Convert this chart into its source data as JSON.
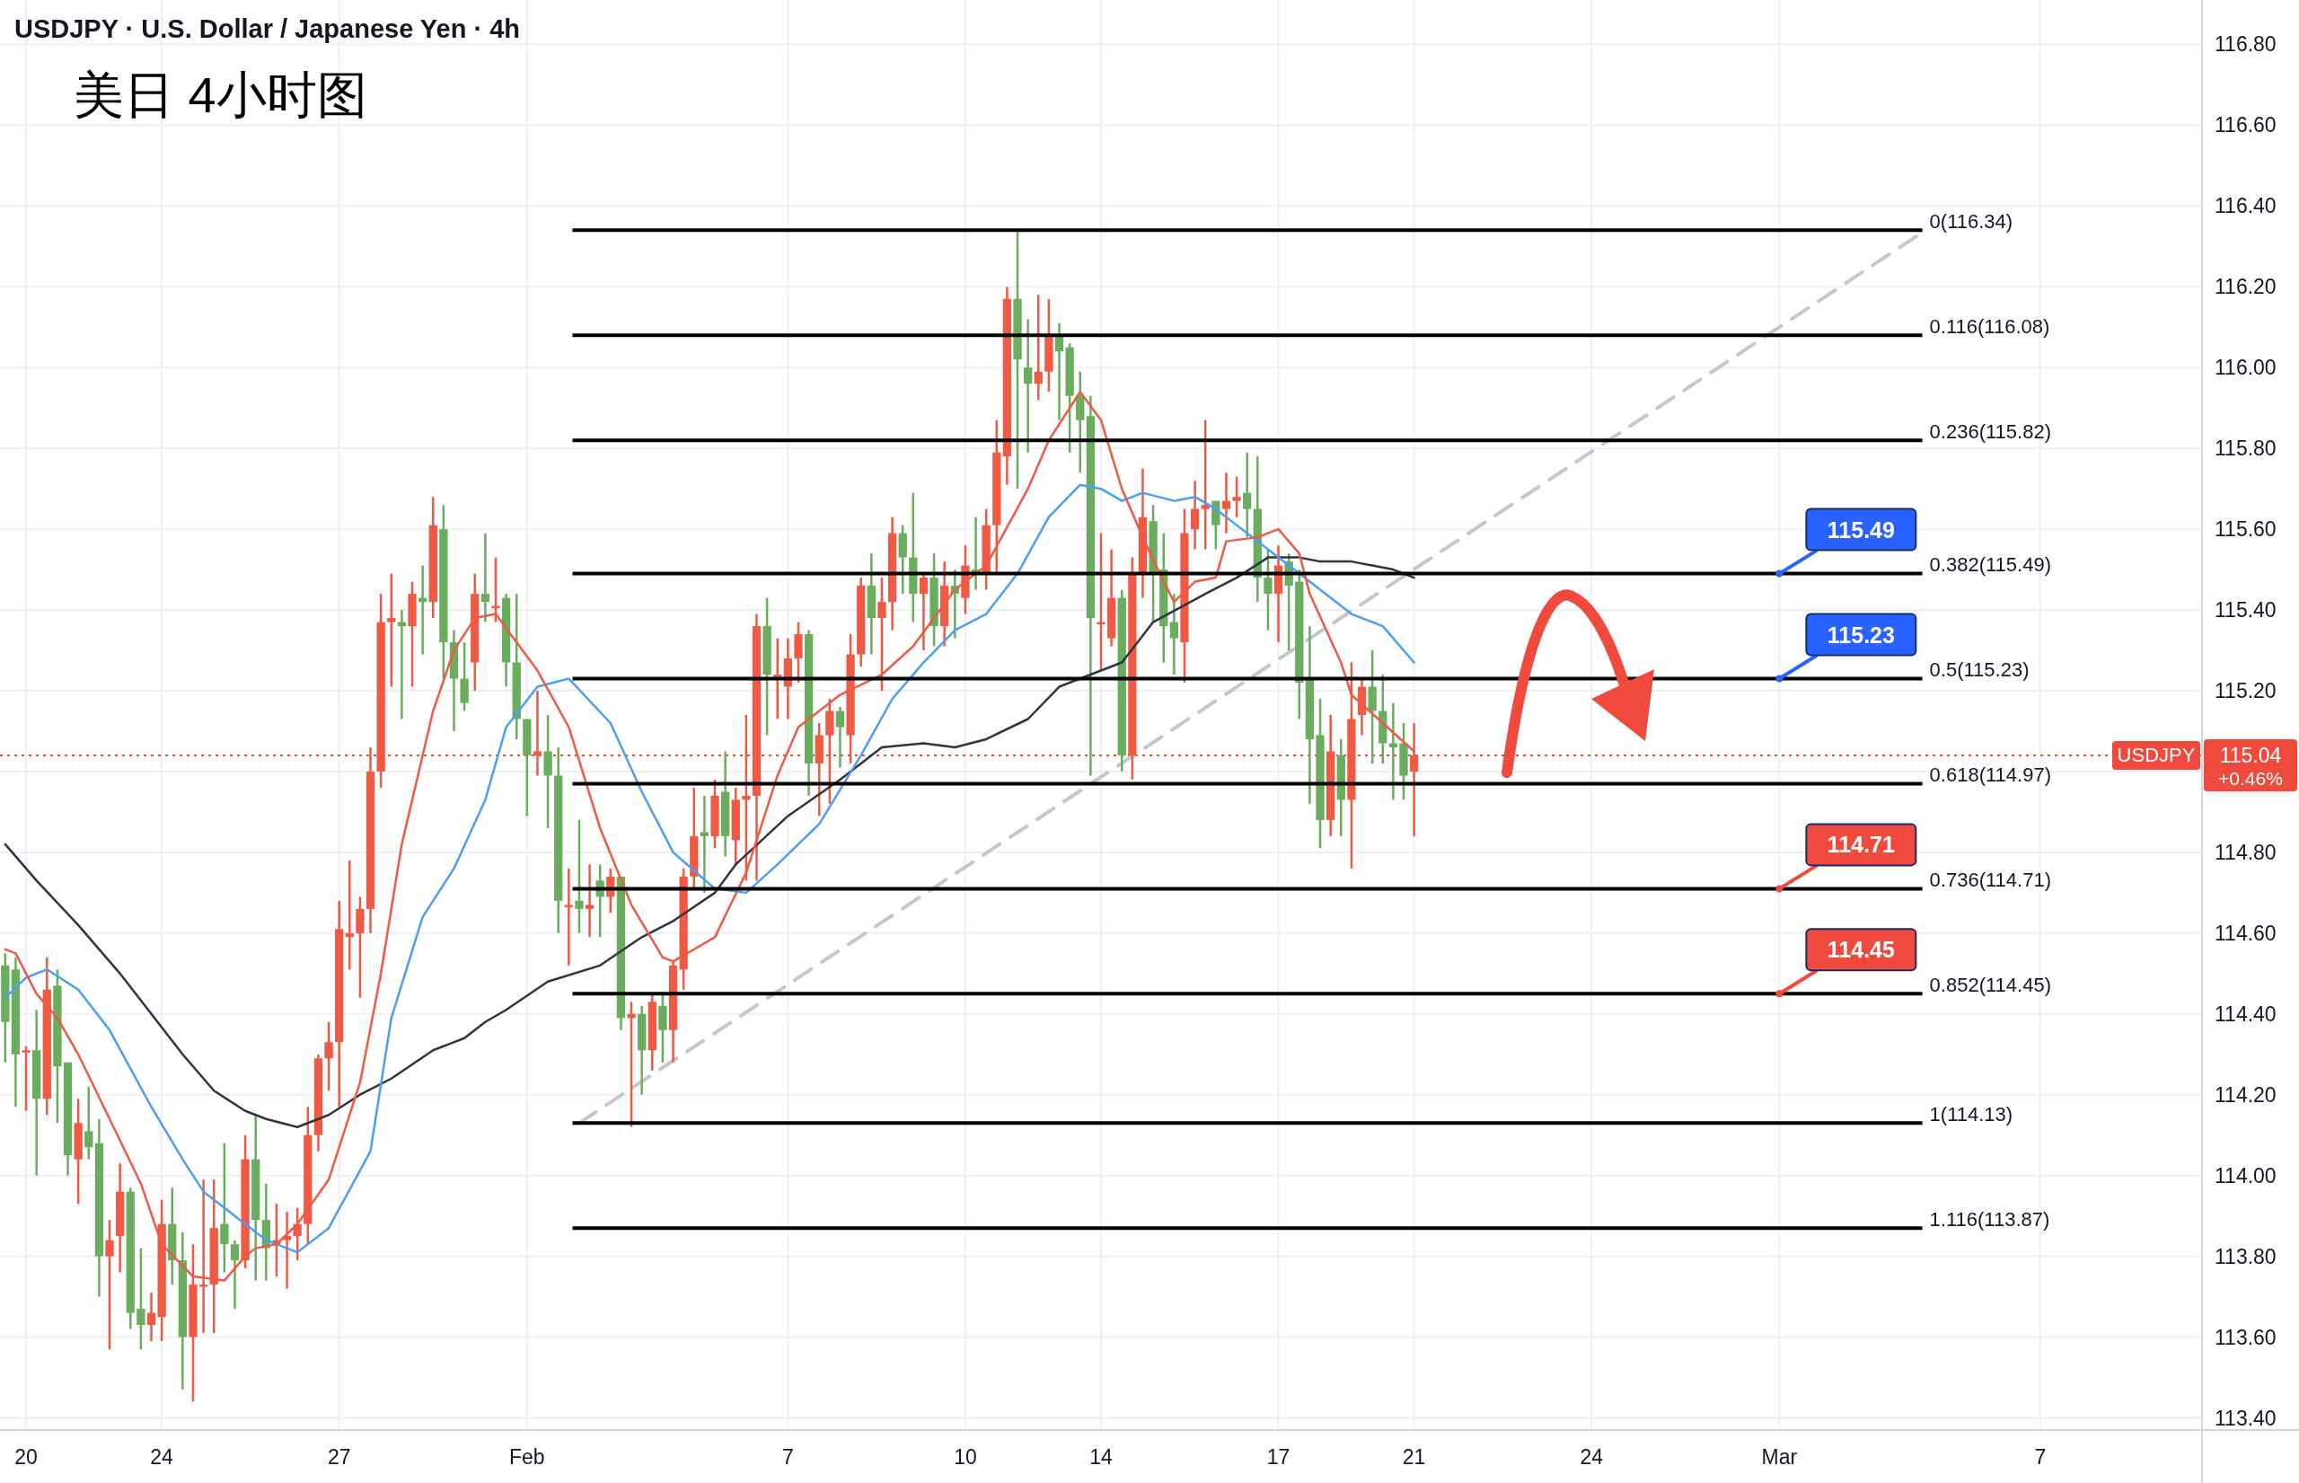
{
  "chart_data": {
    "type": "candlestick",
    "title": "USDJPY · U.S. Dollar / Japanese Yen · 4h",
    "subtitle": "美日 4小时图",
    "categories": [
      null,
      null,
      "20",
      null,
      null,
      null,
      null,
      null,
      null,
      null,
      null,
      null,
      null,
      null,
      null,
      "24",
      null,
      null,
      null,
      null,
      null,
      null,
      null,
      null,
      null,
      null,
      null,
      null,
      null,
      null,
      null,
      null,
      "27",
      null,
      null,
      null,
      null,
      null,
      null,
      null,
      null,
      null,
      null,
      null,
      null,
      null,
      null,
      null,
      null,
      null,
      "Feb",
      null,
      null,
      null,
      null,
      null,
      null,
      null,
      null,
      null,
      null,
      null,
      null,
      null,
      null,
      null,
      null,
      null,
      null,
      null,
      null,
      null,
      null,
      null,
      null,
      "7",
      null,
      null,
      null,
      null,
      null,
      null,
      null,
      null,
      null,
      null,
      null,
      null,
      null,
      null,
      null,
      null,
      "10",
      null,
      null,
      null,
      null,
      null,
      null,
      null,
      null,
      null,
      null,
      null,
      null,
      "14",
      null,
      null,
      null,
      null,
      null,
      null,
      null,
      null,
      null,
      null,
      null,
      null,
      null,
      null,
      null,
      null,
      "17",
      null,
      null,
      null,
      null,
      null,
      null,
      null,
      null,
      null,
      null,
      null,
      null,
      "21",
      null,
      null,
      null,
      null,
      null,
      null,
      null,
      null,
      null,
      null,
      null,
      null,
      null,
      null,
      null,
      null,
      "24",
      null,
      null,
      null,
      null,
      null,
      null,
      null,
      null,
      null,
      null,
      null,
      null,
      null,
      null,
      null,
      null,
      null,
      "Mar",
      null,
      null,
      null,
      null,
      null,
      null,
      null,
      null,
      null,
      null,
      null,
      null,
      null,
      null,
      null,
      null,
      null,
      null,
      null,
      null,
      null,
      null,
      null,
      null,
      "7",
      null,
      null,
      null,
      null,
      null,
      null,
      null,
      null,
      null,
      null,
      null,
      null,
      null,
      null,
      null
    ],
    "ohlc": [
      [
        114.52,
        114.55,
        114.28,
        114.38
      ],
      [
        114.51,
        114.54,
        114.17,
        114.3
      ],
      [
        114.31,
        114.32,
        114.16,
        114.31
      ],
      [
        114.31,
        114.41,
        114.0,
        114.19
      ],
      [
        114.19,
        114.54,
        114.15,
        114.46
      ],
      [
        114.47,
        114.51,
        114.13,
        114.27
      ],
      [
        114.28,
        114.28,
        114.0,
        114.05
      ],
      [
        114.04,
        114.19,
        113.93,
        114.13
      ],
      [
        114.11,
        114.22,
        114.04,
        114.07
      ],
      [
        114.08,
        114.14,
        113.7,
        113.8
      ],
      [
        113.8,
        113.89,
        113.57,
        113.84
      ],
      [
        113.85,
        114.03,
        113.76,
        113.96
      ],
      [
        113.96,
        113.97,
        113.62,
        113.66
      ],
      [
        113.67,
        113.82,
        113.57,
        113.63
      ],
      [
        113.63,
        113.71,
        113.59,
        113.66
      ],
      [
        113.65,
        113.94,
        113.59,
        113.88
      ],
      [
        113.88,
        113.97,
        113.73,
        113.79
      ],
      [
        113.79,
        113.86,
        113.47,
        113.6
      ],
      [
        113.6,
        113.83,
        113.44,
        113.73
      ],
      [
        113.73,
        113.99,
        113.61,
        113.73
      ],
      [
        113.73,
        113.99,
        113.61,
        113.87
      ],
      [
        113.88,
        114.08,
        113.76,
        113.83
      ],
      [
        113.83,
        113.84,
        113.67,
        113.79
      ],
      [
        113.79,
        114.1,
        113.77,
        114.04
      ],
      [
        114.04,
        114.15,
        113.74,
        113.89
      ],
      [
        113.89,
        113.98,
        113.74,
        113.82
      ],
      [
        113.83,
        113.93,
        113.75,
        113.84
      ],
      [
        113.84,
        113.91,
        113.72,
        113.85
      ],
      [
        113.85,
        113.92,
        113.79,
        113.88
      ],
      [
        113.88,
        114.17,
        113.83,
        114.1
      ],
      [
        114.1,
        114.3,
        114.06,
        114.29
      ],
      [
        114.29,
        114.38,
        114.21,
        114.33
      ],
      [
        114.33,
        114.68,
        114.17,
        114.61
      ],
      [
        114.59,
        114.78,
        114.51,
        114.6
      ],
      [
        114.6,
        114.69,
        114.44,
        114.66
      ],
      [
        114.66,
        115.06,
        114.6,
        115.0
      ],
      [
        115.0,
        115.44,
        114.96,
        115.37
      ],
      [
        115.37,
        115.49,
        115.21,
        115.38
      ],
      [
        115.37,
        115.4,
        115.13,
        115.36
      ],
      [
        115.36,
        115.47,
        115.21,
        115.44
      ],
      [
        115.43,
        115.51,
        115.29,
        115.42
      ],
      [
        115.42,
        115.68,
        115.38,
        115.61
      ],
      [
        115.6,
        115.66,
        115.23,
        115.32
      ],
      [
        115.32,
        115.35,
        115.1,
        115.23
      ],
      [
        115.23,
        115.32,
        115.15,
        115.17
      ],
      [
        115.27,
        115.49,
        115.2,
        115.44
      ],
      [
        115.44,
        115.59,
        115.37,
        115.42
      ],
      [
        115.41,
        115.53,
        115.37,
        115.41
      ],
      [
        115.43,
        115.44,
        115.21,
        115.27
      ],
      [
        115.27,
        115.44,
        115.08,
        115.13
      ],
      [
        115.13,
        115.13,
        114.89,
        115.04
      ],
      [
        115.04,
        115.2,
        114.99,
        115.05
      ],
      [
        115.05,
        115.14,
        114.86,
        114.99
      ],
      [
        114.99,
        115.06,
        114.6,
        114.68
      ],
      [
        114.67,
        114.76,
        114.52,
        114.67
      ],
      [
        114.68,
        114.88,
        114.6,
        114.66
      ],
      [
        114.66,
        114.77,
        114.59,
        114.67
      ],
      [
        114.73,
        114.77,
        114.59,
        114.69
      ],
      [
        114.69,
        114.76,
        114.65,
        114.74
      ],
      [
        114.74,
        114.74,
        114.36,
        114.39
      ],
      [
        114.39,
        114.43,
        114.12,
        114.4
      ],
      [
        114.4,
        114.42,
        114.2,
        114.31
      ],
      [
        114.31,
        114.45,
        114.26,
        114.43
      ],
      [
        114.42,
        114.45,
        114.28,
        114.36
      ],
      [
        114.36,
        114.53,
        114.28,
        114.52
      ],
      [
        114.51,
        114.76,
        114.46,
        114.74
      ],
      [
        114.74,
        114.96,
        114.71,
        114.84
      ],
      [
        114.85,
        114.94,
        114.7,
        114.84
      ],
      [
        114.84,
        114.98,
        114.81,
        114.94
      ],
      [
        114.95,
        115.05,
        114.79,
        114.84
      ],
      [
        114.83,
        114.96,
        114.77,
        114.93
      ],
      [
        114.93,
        115.14,
        114.73,
        114.94
      ],
      [
        114.94,
        115.39,
        114.73,
        115.36
      ],
      [
        115.36,
        115.43,
        115.09,
        115.24
      ],
      [
        115.24,
        115.33,
        115.13,
        115.24
      ],
      [
        115.21,
        115.33,
        115.13,
        115.28
      ],
      [
        115.28,
        115.37,
        115.22,
        115.34
      ],
      [
        115.34,
        115.35,
        114.94,
        115.02
      ],
      [
        115.02,
        115.12,
        114.89,
        115.09
      ],
      [
        115.09,
        115.18,
        114.92,
        115.15
      ],
      [
        115.15,
        115.16,
        115.01,
        115.11
      ],
      [
        115.09,
        115.34,
        115.02,
        115.29
      ],
      [
        115.29,
        115.48,
        115.26,
        115.46
      ],
      [
        115.46,
        115.54,
        115.29,
        115.38
      ],
      [
        115.38,
        115.48,
        115.2,
        115.42
      ],
      [
        115.42,
        115.63,
        115.35,
        115.59
      ],
      [
        115.59,
        115.61,
        115.44,
        115.53
      ],
      [
        115.53,
        115.69,
        115.37,
        115.44
      ],
      [
        115.44,
        115.49,
        115.3,
        115.48
      ],
      [
        115.48,
        115.54,
        115.31,
        115.36
      ],
      [
        115.36,
        115.52,
        115.31,
        115.46
      ],
      [
        115.46,
        115.5,
        115.33,
        115.44
      ],
      [
        115.43,
        115.56,
        115.39,
        115.51
      ],
      [
        115.5,
        115.63,
        115.45,
        115.49
      ],
      [
        115.49,
        115.65,
        115.45,
        115.61
      ],
      [
        115.61,
        115.87,
        115.49,
        115.79
      ],
      [
        115.78,
        116.2,
        115.71,
        116.17
      ],
      [
        116.17,
        116.34,
        115.7,
        116.02
      ],
      [
        116.0,
        116.12,
        115.79,
        115.96
      ],
      [
        115.96,
        116.18,
        115.92,
        115.99
      ],
      [
        115.99,
        116.17,
        115.94,
        116.08
      ],
      [
        116.08,
        116.11,
        115.87,
        116.04
      ],
      [
        116.05,
        116.06,
        115.79,
        115.93
      ],
      [
        115.93,
        115.99,
        115.74,
        115.87
      ],
      [
        115.88,
        115.93,
        114.99,
        115.38
      ],
      [
        115.37,
        115.59,
        115.25,
        115.37
      ],
      [
        115.33,
        115.55,
        115.31,
        115.43
      ],
      [
        115.43,
        115.45,
        115.0,
        115.04
      ],
      [
        115.04,
        115.53,
        114.98,
        115.49
      ],
      [
        115.49,
        115.75,
        115.43,
        115.63
      ],
      [
        115.62,
        115.66,
        115.37,
        115.49
      ],
      [
        115.5,
        115.59,
        115.27,
        115.36
      ],
      [
        115.37,
        115.44,
        115.24,
        115.33
      ],
      [
        115.32,
        115.65,
        115.22,
        115.59
      ],
      [
        115.6,
        115.72,
        115.55,
        115.65
      ],
      [
        115.65,
        115.87,
        115.55,
        115.66
      ],
      [
        115.67,
        115.67,
        115.55,
        115.61
      ],
      [
        115.65,
        115.74,
        115.59,
        115.67
      ],
      [
        115.67,
        115.73,
        115.63,
        115.68
      ],
      [
        115.69,
        115.79,
        115.58,
        115.65
      ],
      [
        115.65,
        115.78,
        115.42,
        115.48
      ],
      [
        115.48,
        115.55,
        115.35,
        115.44
      ],
      [
        115.44,
        115.56,
        115.32,
        115.51
      ],
      [
        115.52,
        115.54,
        115.3,
        115.46
      ],
      [
        115.47,
        115.5,
        115.13,
        115.22
      ],
      [
        115.23,
        115.36,
        114.92,
        115.08
      ],
      [
        115.09,
        115.18,
        114.81,
        114.88
      ],
      [
        114.88,
        115.14,
        114.84,
        115.05
      ],
      [
        115.04,
        115.08,
        114.84,
        114.93
      ],
      [
        114.93,
        115.27,
        114.76,
        115.13
      ],
      [
        115.14,
        115.23,
        115.09,
        115.21
      ],
      [
        115.21,
        115.3,
        115.02,
        115.15
      ],
      [
        115.15,
        115.24,
        115.02,
        115.07
      ],
      [
        115.07,
        115.17,
        114.93,
        115.06
      ],
      [
        115.07,
        115.12,
        114.93,
        114.99
      ],
      [
        115.0,
        115.12,
        114.84,
        115.04
      ],
      null,
      null,
      null,
      null,
      null,
      null,
      null,
      null,
      null,
      null,
      null,
      null,
      null,
      null,
      null,
      null,
      null,
      null,
      null,
      null,
      null,
      null,
      null,
      null,
      null,
      null,
      null,
      null,
      null,
      null,
      null,
      null,
      null,
      null,
      null,
      null,
      null,
      null,
      null,
      null,
      null,
      null,
      null,
      null,
      null,
      null,
      null,
      null,
      null,
      null,
      null,
      null,
      null,
      null,
      null,
      null,
      null,
      null,
      null,
      null,
      null,
      null,
      null,
      null,
      null,
      null,
      null,
      null,
      null,
      null,
      null,
      null,
      null,
      null,
      null
    ],
    "series": [
      {
        "type": "line",
        "color": "#333340",
        "values": [
          114.82,
          null,
          null,
          114.73,
          null,
          null,
          null,
          114.62,
          null,
          null,
          null,
          114.5,
          null,
          null,
          114.4,
          null,
          null,
          114.3,
          null,
          null,
          114.21,
          null,
          null,
          114.16,
          null,
          114.14,
          null,
          null,
          114.12,
          null,
          null,
          114.15,
          null,
          null,
          114.2,
          null,
          null,
          114.24,
          null,
          null,
          null,
          114.31,
          null,
          null,
          114.34,
          null,
          114.38,
          null,
          114.41,
          null,
          null,
          null,
          114.48,
          null,
          null,
          null,
          null,
          114.52,
          null,
          null,
          null,
          114.59,
          null,
          null,
          114.63,
          null,
          null,
          null,
          114.7,
          null,
          114.77,
          null,
          null,
          null,
          null,
          114.89,
          null,
          null,
          null,
          null,
          114.98,
          null,
          null,
          null,
          115.06,
          null,
          null,
          null,
          115.07,
          null,
          null,
          115.06,
          null,
          null,
          115.08,
          null,
          null,
          null,
          115.13,
          null,
          null,
          115.21,
          null,
          null,
          115.24,
          null,
          null,
          115.27,
          null,
          null,
          115.37,
          null,
          null,
          null,
          null,
          115.44,
          null,
          null,
          115.48,
          null,
          null,
          115.53,
          null,
          null,
          115.53,
          null,
          115.52,
          null,
          null,
          115.52,
          null,
          115.51,
          null,
          115.5,
          null,
          115.48,
          null,
          null,
          null,
          null,
          null,
          null,
          null,
          null,
          null,
          null,
          null,
          null,
          null,
          null,
          null,
          null,
          null,
          null,
          null,
          null,
          null,
          null,
          null,
          null,
          null,
          null,
          null,
          null,
          null,
          null,
          null,
          null,
          null,
          null,
          null,
          null,
          null,
          null,
          null,
          null,
          null,
          null,
          null,
          null,
          null,
          null,
          null,
          null,
          null,
          null,
          null,
          null,
          null,
          null,
          null,
          null,
          null,
          null,
          null,
          null,
          null,
          null,
          null,
          null,
          null,
          null,
          null,
          null,
          null,
          null,
          null,
          null,
          null,
          null,
          null
        ]
      },
      {
        "type": "line",
        "color": "#4a9ff5",
        "values": [
          114.44,
          null,
          114.49,
          null,
          114.51,
          null,
          null,
          114.46,
          null,
          null,
          114.36,
          null,
          null,
          null,
          114.17,
          null,
          null,
          114.04,
          null,
          113.96,
          null,
          null,
          113.9,
          null,
          null,
          113.84,
          null,
          null,
          113.81,
          null,
          null,
          113.87,
          null,
          null,
          null,
          114.06,
          null,
          114.39,
          null,
          null,
          114.64,
          null,
          null,
          114.76,
          null,
          null,
          114.93,
          null,
          115.11,
          null,
          null,
          115.21,
          null,
          null,
          115.23,
          null,
          null,
          null,
          115.12,
          null,
          null,
          114.95,
          null,
          null,
          114.8,
          null,
          null,
          null,
          114.71,
          null,
          null,
          114.7,
          null,
          null,
          114.77,
          null,
          null,
          null,
          114.87,
          null,
          null,
          null,
          115.04,
          null,
          null,
          115.18,
          null,
          null,
          115.27,
          null,
          null,
          115.35,
          null,
          null,
          115.39,
          null,
          null,
          115.49,
          null,
          null,
          115.63,
          null,
          null,
          115.71,
          null,
          115.7,
          null,
          115.67,
          null,
          115.69,
          null,
          null,
          115.67,
          null,
          115.68,
          null,
          115.65,
          null,
          null,
          115.59,
          null,
          null,
          null,
          115.51,
          null,
          null,
          115.45,
          null,
          null,
          115.39,
          null,
          null,
          115.36,
          null,
          null,
          115.27,
          null,
          null,
          null,
          null,
          null,
          null,
          null,
          null,
          null,
          null,
          null,
          null,
          null,
          null,
          null,
          null,
          null,
          null,
          null,
          null,
          null,
          null,
          null,
          null,
          null,
          null,
          null,
          null,
          null,
          null,
          null,
          null,
          null,
          null,
          null,
          null,
          null,
          null,
          null,
          null,
          null,
          null,
          null,
          null,
          null,
          null,
          null,
          null,
          null,
          null,
          null,
          null,
          null,
          null,
          null,
          null,
          null,
          null,
          null,
          null,
          null,
          null,
          null,
          null,
          null,
          null,
          null,
          null,
          null,
          null,
          null,
          null,
          null,
          null,
          null
        ]
      },
      {
        "type": "line",
        "color": "#ef5a45",
        "values": [
          114.56,
          114.55,
          null,
          114.45,
          null,
          114.39,
          null,
          114.3,
          null,
          null,
          114.14,
          null,
          null,
          113.98,
          null,
          113.83,
          null,
          null,
          113.75,
          null,
          null,
          113.74,
          null,
          113.8,
          113.82,
          null,
          113.83,
          null,
          113.88,
          null,
          null,
          113.99,
          null,
          null,
          114.23,
          null,
          114.5,
          null,
          114.82,
          null,
          null,
          115.15,
          null,
          115.3,
          null,
          115.38,
          null,
          115.39,
          null,
          null,
          null,
          115.25,
          null,
          null,
          115.11,
          null,
          null,
          114.86,
          null,
          null,
          114.67,
          null,
          null,
          114.54,
          114.53,
          null,
          null,
          null,
          114.59,
          null,
          null,
          114.75,
          null,
          null,
          114.99,
          null,
          115.11,
          null,
          null,
          null,
          115.19,
          null,
          null,
          null,
          115.24,
          null,
          null,
          115.31,
          null,
          null,
          null,
          115.45,
          null,
          null,
          115.51,
          null,
          null,
          null,
          115.7,
          null,
          115.82,
          null,
          null,
          115.94,
          null,
          115.87,
          null,
          115.7,
          null,
          115.58,
          null,
          115.47,
          115.42,
          null,
          115.47,
          null,
          115.48,
          115.57,
          null,
          null,
          115.58,
          null,
          115.6,
          null,
          115.54,
          115.44,
          null,
          null,
          115.27,
          115.19,
          null,
          null,
          115.12,
          null,
          null,
          115.05,
          null,
          null,
          null,
          null,
          null,
          null,
          null,
          null,
          null,
          null,
          null,
          null,
          null,
          null,
          null,
          null,
          null,
          null,
          null,
          null,
          null,
          null,
          null,
          null,
          null,
          null,
          null,
          null,
          null,
          null,
          null,
          null,
          null,
          null,
          null,
          null,
          null,
          null,
          null,
          null,
          null,
          null,
          null,
          null,
          null,
          null,
          null,
          null,
          null,
          null,
          null,
          null,
          null,
          null,
          null,
          null,
          null,
          null,
          null,
          null,
          null,
          null,
          null,
          null,
          null,
          null,
          null,
          null,
          null,
          null,
          null,
          null,
          null,
          null,
          null
        ]
      },
      {
        "type": "line",
        "color": "#c5c7cf",
        "line_style": "dashed",
        "values": [
          null,
          null,
          null,
          null,
          null,
          null,
          null,
          null,
          null,
          null,
          null,
          null,
          null,
          null,
          null,
          null,
          null,
          null,
          null,
          null,
          null,
          null,
          null,
          null,
          null,
          null,
          null,
          null,
          null,
          null,
          null,
          null,
          null,
          null,
          null,
          null,
          null,
          null,
          null,
          null,
          null,
          null,
          null,
          null,
          null,
          null,
          null,
          null,
          null,
          null,
          null,
          null,
          null,
          null,
          null,
          114.13,
          null,
          null,
          null,
          null,
          null,
          null,
          null,
          null,
          null,
          null,
          null,
          null,
          null,
          null,
          null,
          null,
          null,
          null,
          null,
          null,
          null,
          null,
          null,
          null,
          null,
          null,
          null,
          null,
          null,
          null,
          null,
          null,
          null,
          null,
          null,
          null,
          null,
          null,
          null,
          null,
          null,
          null,
          null,
          null,
          null,
          null,
          null,
          null,
          null,
          null,
          null,
          null,
          null,
          null,
          null,
          null,
          null,
          null,
          null,
          null,
          null,
          null,
          null,
          null,
          null,
          null,
          null,
          null,
          null,
          null,
          null,
          null,
          null,
          null,
          null,
          null,
          null,
          null,
          null,
          null,
          null,
          null,
          null,
          null,
          null,
          null,
          null,
          null,
          null,
          null,
          null,
          null,
          null,
          null,
          null,
          null,
          null,
          null,
          null,
          null,
          null,
          null,
          null,
          null,
          null,
          null,
          null,
          null,
          null,
          null,
          null,
          null,
          null,
          null,
          null,
          null,
          null,
          null,
          null,
          null,
          null,
          null,
          null,
          null,
          null,
          null,
          null,
          null,
          116.34,
          null,
          null,
          null,
          null,
          null,
          null,
          null,
          null,
          null,
          null,
          null,
          null,
          null,
          null,
          null,
          null,
          null,
          null,
          null,
          null,
          null,
          null,
          null,
          null,
          null,
          null
        ]
      }
    ],
    "ylim": [
      113.37,
      116.91
    ],
    "yticks": [
      {
        "value": 113.4,
        "label": "113.40"
      },
      {
        "value": 113.6,
        "label": "113.60"
      },
      {
        "value": 113.8,
        "label": "113.80"
      },
      {
        "value": 114.0,
        "label": "114.00"
      },
      {
        "value": 114.2,
        "label": "114.20"
      },
      {
        "value": 114.4,
        "label": "114.40"
      },
      {
        "value": 114.6,
        "label": "114.60"
      },
      {
        "value": 114.8,
        "label": "114.80"
      },
      {
        "value": 115.0,
        "label": null
      },
      {
        "value": 115.2,
        "label": "115.20"
      },
      {
        "value": 115.4,
        "label": "115.40"
      },
      {
        "value": 115.6,
        "label": "115.60"
      },
      {
        "value": 115.8,
        "label": "115.80"
      },
      {
        "value": 116.0,
        "label": "116.00"
      },
      {
        "value": 116.2,
        "label": "116.20"
      },
      {
        "value": 116.4,
        "label": "116.40"
      },
      {
        "value": 116.6,
        "label": "116.60"
      },
      {
        "value": 116.8,
        "label": "116.80"
      }
    ],
    "grid": true,
    "ref_lines": [
      {
        "axis": "y",
        "value": 116.34,
        "label": "0(116.34)",
        "color": "#000000"
      },
      {
        "axis": "y",
        "value": 116.08,
        "label": "0.116(116.08)",
        "color": "#000000"
      },
      {
        "axis": "y",
        "value": 115.82,
        "label": "0.236(115.82)",
        "color": "#000000"
      },
      {
        "axis": "y",
        "value": 115.49,
        "label": "0.382(115.49)",
        "color": "#000000"
      },
      {
        "axis": "y",
        "value": 115.23,
        "label": "0.5(115.23)",
        "color": "#000000"
      },
      {
        "axis": "y",
        "value": 114.97,
        "label": "0.618(114.97)",
        "color": "#000000"
      },
      {
        "axis": "y",
        "value": 114.71,
        "label": "0.736(114.71)",
        "color": "#000000"
      },
      {
        "axis": "y",
        "value": 114.45,
        "label": "0.852(114.45)",
        "color": "#000000"
      },
      {
        "axis": "y",
        "value": 114.13,
        "label": "1(114.13)",
        "color": "#000000"
      },
      {
        "axis": "y",
        "value": 113.87,
        "label": "1.116(113.87)",
        "color": "#000000"
      },
      {
        "axis": "y",
        "value": 115.04,
        "label": "USDJPY",
        "color": "#ef4a3c",
        "line_style": "dotted"
      }
    ],
    "annotations": [
      {
        "text": "115.49",
        "x": "Mar",
        "y": 115.49
      },
      {
        "text": "115.23",
        "x": "Mar",
        "y": 115.23
      },
      {
        "text": "114.71",
        "x": "Mar",
        "y": 114.71
      },
      {
        "text": "114.45",
        "x": "Mar",
        "y": 114.45
      },
      "115.04",
      "+0.46%"
    ]
  }
}
